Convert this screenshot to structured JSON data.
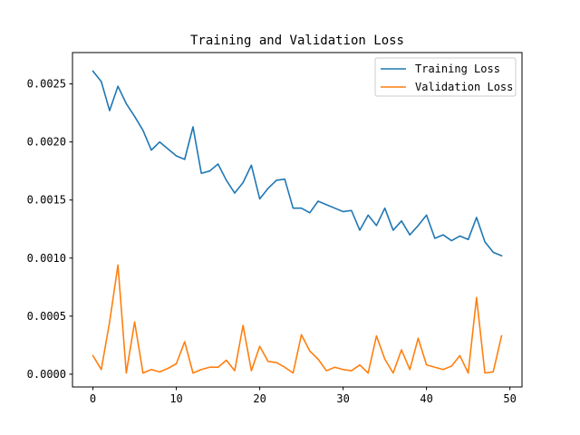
{
  "chart_data": {
    "type": "line",
    "title": "Training and Validation Loss",
    "xlabel": "",
    "ylabel": "",
    "xlim": [
      -2.45,
      51.45
    ],
    "ylim": [
      -0.00011,
      0.00277
    ],
    "xticks": [
      0,
      10,
      20,
      30,
      40,
      50
    ],
    "xtick_labels": [
      "0",
      "10",
      "20",
      "30",
      "40",
      "50"
    ],
    "yticks": [
      0.0,
      0.0005,
      0.001,
      0.0015,
      0.002,
      0.0025
    ],
    "ytick_labels": [
      "0.0000",
      "0.0005",
      "0.0010",
      "0.0015",
      "0.0020",
      "0.0025"
    ],
    "grid": false,
    "legend_position": "top-right",
    "x": [
      0,
      1,
      2,
      3,
      4,
      5,
      6,
      7,
      8,
      9,
      10,
      11,
      12,
      13,
      14,
      15,
      16,
      17,
      18,
      19,
      20,
      21,
      22,
      23,
      24,
      25,
      26,
      27,
      28,
      29,
      30,
      31,
      32,
      33,
      34,
      35,
      36,
      37,
      38,
      39,
      40,
      41,
      42,
      43,
      44,
      45,
      46,
      47,
      48,
      49
    ],
    "series": [
      {
        "name": "Training Loss",
        "color": "#1f77b4",
        "values": [
          0.00261,
          0.00252,
          0.00227,
          0.00248,
          0.00233,
          0.00222,
          0.0021,
          0.00193,
          0.002,
          0.00194,
          0.00188,
          0.00185,
          0.00213,
          0.00173,
          0.00175,
          0.00181,
          0.00167,
          0.00156,
          0.00165,
          0.0018,
          0.00151,
          0.0016,
          0.00167,
          0.00168,
          0.00143,
          0.00143,
          0.00139,
          0.00149,
          0.00146,
          0.00143,
          0.0014,
          0.00141,
          0.00124,
          0.00137,
          0.00128,
          0.00143,
          0.00124,
          0.00132,
          0.0012,
          0.00128,
          0.00137,
          0.00117,
          0.0012,
          0.00115,
          0.00119,
          0.00116,
          0.00135,
          0.00114,
          0.00105,
          0.00102
        ]
      },
      {
        "name": "Validation Loss",
        "color": "#ff7f0e",
        "values": [
          0.00016,
          4e-05,
          0.00045,
          0.00094,
          1e-05,
          0.00045,
          1e-05,
          4e-05,
          2e-05,
          5e-05,
          9e-05,
          0.00028,
          1e-05,
          4e-05,
          6e-05,
          6e-05,
          0.00012,
          3e-05,
          0.00042,
          3e-05,
          0.00024,
          0.00011,
          0.0001,
          6e-05,
          1e-05,
          0.00034,
          0.0002,
          0.00013,
          3e-05,
          6e-05,
          4e-05,
          3e-05,
          8e-05,
          1e-05,
          0.00033,
          0.00013,
          1e-05,
          0.00021,
          4e-05,
          0.00031,
          8e-05,
          6e-05,
          4e-05,
          7e-05,
          0.00016,
          1e-05,
          0.00066,
          1e-05,
          2e-05,
          0.00033
        ]
      }
    ]
  }
}
